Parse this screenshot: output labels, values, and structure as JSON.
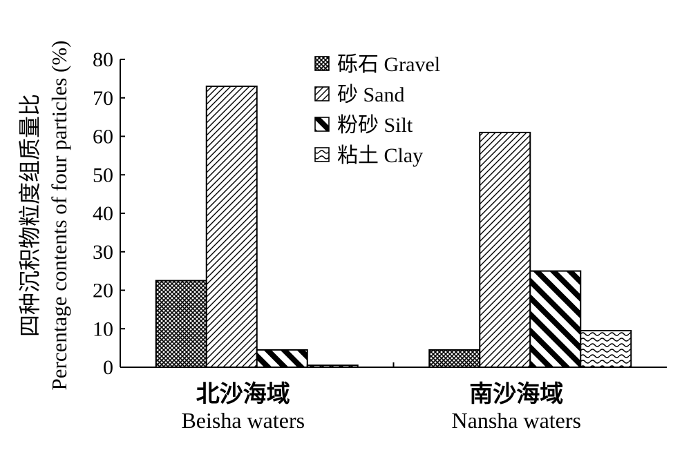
{
  "chart_data": {
    "type": "bar",
    "title": "",
    "ylabel_cn": "四种沉积物粒度组质量比",
    "ylabel_en": "Percentage contents of four particles (%)",
    "ylim": [
      0,
      80
    ],
    "yticks": [
      0,
      10,
      20,
      30,
      40,
      50,
      60,
      70,
      80
    ],
    "categories": [
      {
        "cn": "北沙海域",
        "en": "Beisha waters"
      },
      {
        "cn": "南沙海域",
        "en": "Nansha waters"
      }
    ],
    "series": [
      {
        "name": "砾石 Gravel",
        "pattern": "crosshatch",
        "values": [
          22.5,
          4.5
        ]
      },
      {
        "name": "砂 Sand",
        "pattern": "diag-fine",
        "values": [
          73,
          61
        ]
      },
      {
        "name": "粉砂 Silt",
        "pattern": "diag-bold",
        "values": [
          4.5,
          25
        ]
      },
      {
        "name": "粘土 Clay",
        "pattern": "wave",
        "values": [
          0.5,
          9.5
        ]
      }
    ],
    "legend_position": "top-center",
    "grid": false
  }
}
